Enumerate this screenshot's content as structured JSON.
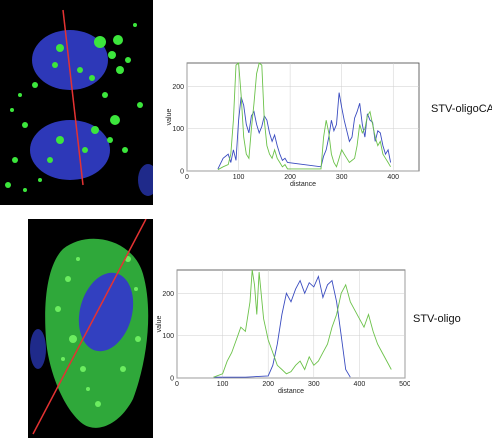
{
  "panels": [
    {
      "id": "top",
      "label": "STV-oligoCAP",
      "image_description_icon": "fluorescence-micrograph",
      "colors": {
        "nucleus": "#2d38b8",
        "signal": "#3ce63c",
        "line": "#e43232"
      }
    },
    {
      "id": "bottom",
      "label": "STV-oligo",
      "image_description_icon": "fluorescence-micrograph",
      "colors": {
        "nucleus": "#2d38b8",
        "signal": "#3ce63c",
        "line": "#e43232"
      }
    }
  ],
  "chart_data": [
    {
      "type": "line",
      "xlabel": "distance",
      "ylabel": "value",
      "xlim": [
        0,
        450
      ],
      "ylim": [
        0,
        255
      ],
      "xticks": [
        0,
        100,
        200,
        300,
        400
      ],
      "yticks": [
        0,
        100,
        200
      ],
      "grid": true,
      "series": [
        {
          "color": "#3a4cc0",
          "x": [
            60,
            70,
            80,
            85,
            90,
            95,
            100,
            105,
            110,
            115,
            120,
            125,
            130,
            135,
            140,
            145,
            150,
            155,
            160,
            165,
            170,
            175,
            180,
            185,
            190,
            195,
            260,
            265,
            270,
            275,
            280,
            285,
            290,
            295,
            300,
            305,
            310,
            315,
            320,
            325,
            330,
            335,
            340,
            345,
            350,
            355,
            360,
            365,
            370,
            375,
            380,
            385,
            390,
            395
          ],
          "y": [
            5,
            30,
            40,
            20,
            50,
            25,
            120,
            175,
            155,
            110,
            90,
            130,
            140,
            110,
            90,
            105,
            130,
            120,
            90,
            70,
            85,
            60,
            40,
            25,
            30,
            20,
            10,
            35,
            50,
            80,
            120,
            95,
            110,
            185,
            150,
            120,
            95,
            70,
            80,
            125,
            140,
            160,
            110,
            80,
            135,
            120,
            115,
            70,
            95,
            90,
            60,
            40,
            50,
            20
          ]
        },
        {
          "color": "#6cc24a",
          "x": [
            60,
            70,
            80,
            85,
            90,
            95,
            100,
            105,
            110,
            115,
            120,
            125,
            130,
            135,
            140,
            145,
            150,
            155,
            160,
            165,
            170,
            175,
            180,
            185,
            190,
            195,
            260,
            265,
            270,
            275,
            280,
            285,
            290,
            295,
            300,
            305,
            310,
            315,
            320,
            325,
            330,
            335,
            340,
            345,
            350,
            355,
            360,
            365,
            370,
            375,
            380,
            385,
            390,
            395
          ],
          "y": [
            3,
            10,
            15,
            40,
            120,
            250,
            255,
            180,
            80,
            40,
            30,
            100,
            160,
            230,
            255,
            250,
            120,
            60,
            40,
            30,
            50,
            30,
            20,
            10,
            15,
            5,
            5,
            80,
            120,
            90,
            40,
            20,
            10,
            30,
            50,
            40,
            30,
            20,
            25,
            30,
            60,
            110,
            90,
            100,
            130,
            140,
            110,
            80,
            60,
            70,
            40,
            30,
            20,
            10
          ]
        }
      ]
    },
    {
      "type": "line",
      "xlabel": "distance",
      "ylabel": "value",
      "xlim": [
        0,
        500
      ],
      "ylim": [
        0,
        255
      ],
      "xticks": [
        0,
        100,
        200,
        300,
        400,
        500
      ],
      "yticks": [
        0,
        100,
        200
      ],
      "grid": true,
      "series": [
        {
          "color": "#3a4cc0",
          "x": [
            80,
            150,
            200,
            210,
            220,
            230,
            240,
            250,
            260,
            270,
            280,
            290,
            300,
            310,
            320,
            330,
            340,
            350,
            360,
            370,
            380
          ],
          "y": [
            2,
            2,
            5,
            30,
            80,
            150,
            200,
            180,
            210,
            230,
            200,
            225,
            215,
            240,
            190,
            220,
            230,
            180,
            100,
            20,
            2
          ]
        },
        {
          "color": "#6cc24a",
          "x": [
            80,
            100,
            110,
            120,
            130,
            140,
            150,
            160,
            165,
            170,
            175,
            180,
            190,
            200,
            210,
            220,
            230,
            240,
            250,
            260,
            270,
            280,
            290,
            300,
            310,
            320,
            330,
            340,
            350,
            360,
            370,
            380,
            390,
            400,
            410,
            420,
            430,
            440,
            450,
            460,
            470
          ],
          "y": [
            2,
            10,
            40,
            60,
            90,
            120,
            110,
            180,
            255,
            220,
            150,
            250,
            140,
            90,
            60,
            30,
            20,
            10,
            15,
            30,
            40,
            20,
            50,
            30,
            40,
            60,
            80,
            120,
            150,
            200,
            220,
            180,
            160,
            140,
            120,
            150,
            110,
            80,
            60,
            40,
            20
          ]
        }
      ]
    }
  ]
}
